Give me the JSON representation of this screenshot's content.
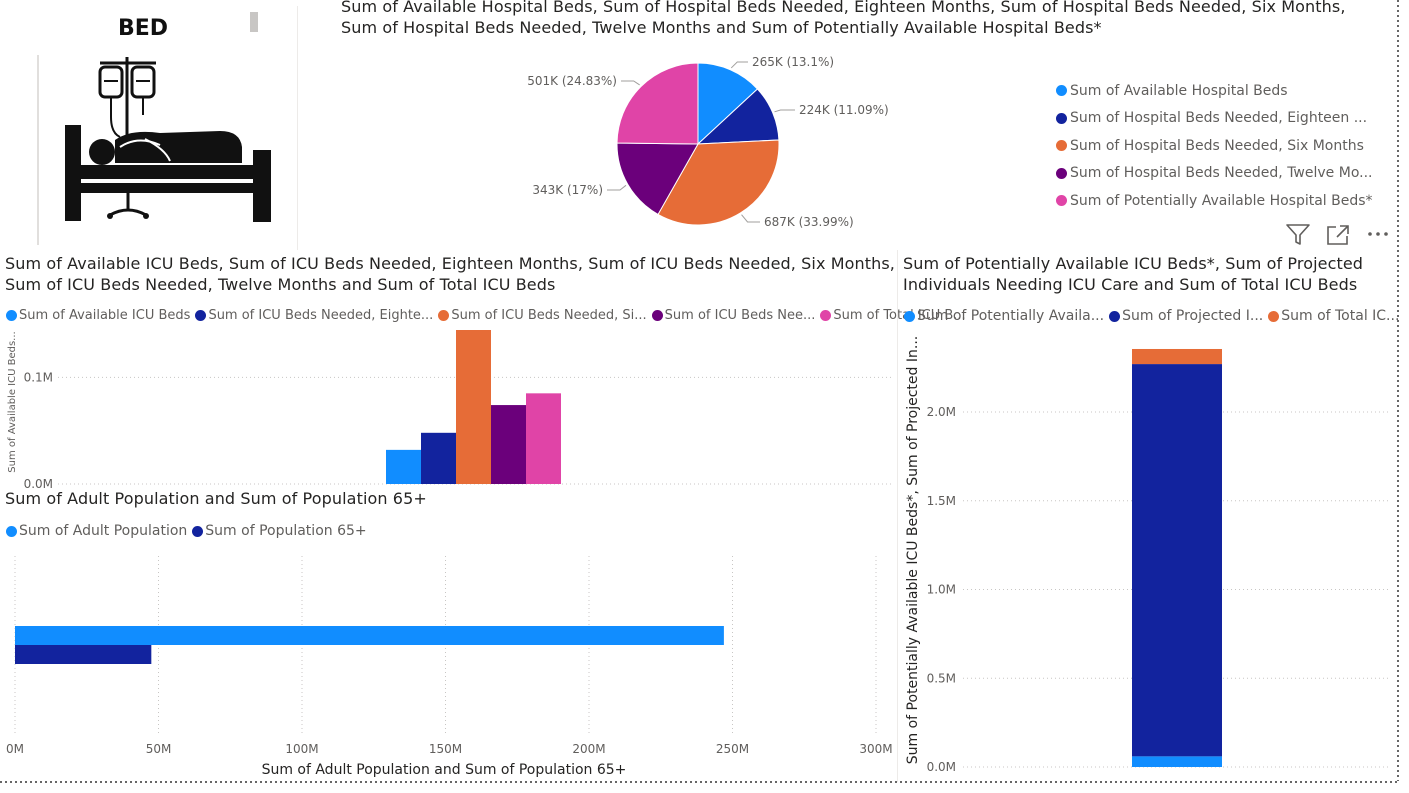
{
  "bed_card": {
    "title": "BED",
    "image_icon": "hospital-bed-icon"
  },
  "pie_visual": {
    "title_line1": "Sum of Available Hospital Beds, Sum of Hospital Beds Needed, Eighteen Months, Sum of Hospital Beds Needed, Six Months,",
    "title_line2": "Sum of Hospital Beds Needed, Twelve Months and Sum of Potentially Available Hospital Beds*",
    "slice_labels": [
      "265K (13.1%)",
      "224K (11.09%)",
      "687K (33.99%)",
      "343K (17%)",
      "501K (24.83%)"
    ],
    "legend": [
      "Sum of Available Hospital Beds",
      "Sum of Hospital Beds Needed, Eighteen ...",
      "Sum of Hospital Beds Needed, Six Months",
      "Sum of Hospital Beds Needed, Twelve Mo...",
      "Sum of Potentially Available Hospital Beds*"
    ],
    "toolbar_icons": [
      "filter-icon",
      "focus-mode-icon",
      "more-options-icon"
    ]
  },
  "icu_visual": {
    "title_line1": "Sum of Available ICU Beds, Sum of ICU Beds Needed, Eighteen Months, Sum of ICU Beds Needed, Six Months,",
    "title_line2": "Sum of ICU Beds Needed, Twelve Months and Sum of Total ICU Beds",
    "legend": [
      "Sum of Available ICU Beds",
      "Sum of ICU Beds Needed, Eighte...",
      "Sum of ICU Beds Needed, Si...",
      "Sum of ICU Beds Nee...",
      "Sum of Total ICU B..."
    ],
    "y_axis_label": "Sum of Available ICU Beds...",
    "y_ticks": [
      "0.0M",
      "0.1M"
    ]
  },
  "population_visual": {
    "title": "Sum of Adult Population and Sum of Population 65+",
    "legend": [
      "Sum of Adult Population",
      "Sum of Population 65+"
    ],
    "x_ticks": [
      "0M",
      "50M",
      "100M",
      "150M",
      "200M",
      "250M",
      "300M"
    ],
    "x_axis_label": "Sum of Adult Population and Sum of Population 65+"
  },
  "stacked_visual": {
    "title_line1": "Sum of Potentially Available ICU Beds*, Sum of Projected",
    "title_line2": "Individuals Needing ICU Care and Sum of Total ICU Beds",
    "legend": [
      "Sum of Potentially Availa...",
      "Sum of Projected I...",
      "Sum of Total IC..."
    ],
    "y_axis_label": "Sum of Potentially Available ICU Beds*, Sum of Projected In...",
    "y_ticks": [
      "0.0M",
      "0.5M",
      "1.0M",
      "1.5M",
      "2.0M"
    ]
  },
  "colors": {
    "series1": "#118DFF",
    "series2": "#12239E",
    "series3": "#E66C37",
    "series4": "#6B007B",
    "series5": "#E044A7",
    "gridline": "#c8c6c4",
    "title_text": "#252423",
    "label_text": "#605e5c"
  },
  "chart_data": [
    {
      "type": "pie",
      "categories": [
        "Sum of Available Hospital Beds",
        "Sum of Hospital Beds Needed, Eighteen Months",
        "Sum of Hospital Beds Needed, Six Months",
        "Sum of Hospital Beds Needed, Twelve Months",
        "Sum of Potentially Available Hospital Beds*"
      ],
      "values": [
        265000,
        224000,
        687000,
        343000,
        501000
      ],
      "percentages": [
        13.1,
        11.09,
        33.99,
        17,
        24.83
      ],
      "legend_position": "right"
    },
    {
      "type": "bar",
      "categories": [
        ""
      ],
      "series": [
        {
          "name": "Sum of Available ICU Beds",
          "values": [
            32000
          ]
        },
        {
          "name": "Sum of ICU Beds Needed, Eighteen Months",
          "values": [
            48000
          ]
        },
        {
          "name": "Sum of ICU Beds Needed, Six Months",
          "values": [
            148000
          ]
        },
        {
          "name": "Sum of ICU Beds Needed, Twelve Months",
          "values": [
            74000
          ]
        },
        {
          "name": "Sum of Total ICU Beds",
          "values": [
            85000
          ]
        }
      ],
      "ylabel": "Sum of Available ICU Beds...",
      "ylim": [
        0,
        150000
      ],
      "grid": true,
      "legend_position": "top-left"
    },
    {
      "type": "bar",
      "orientation": "horizontal",
      "categories": [
        ""
      ],
      "series": [
        {
          "name": "Sum of Adult Population",
          "values": [
            247000000
          ]
        },
        {
          "name": "Sum of Population 65+",
          "values": [
            47500000
          ]
        }
      ],
      "xlabel": "Sum of Adult Population and Sum of Population 65+",
      "xlim": [
        0,
        300000000
      ],
      "grid": true,
      "legend_position": "top-left"
    },
    {
      "type": "bar",
      "stacked": true,
      "categories": [
        ""
      ],
      "series": [
        {
          "name": "Sum of Potentially Available ICU Beds*",
          "values": [
            60000
          ]
        },
        {
          "name": "Sum of Projected Individuals Needing ICU Care",
          "values": [
            2210000
          ]
        },
        {
          "name": "Sum of Total ICU Beds",
          "values": [
            85000
          ]
        }
      ],
      "ylabel": "Sum of Potentially Available ICU Beds*, Sum of Projected In...",
      "ylim": [
        0,
        2300000
      ],
      "grid": true,
      "legend_position": "top-left"
    }
  ]
}
